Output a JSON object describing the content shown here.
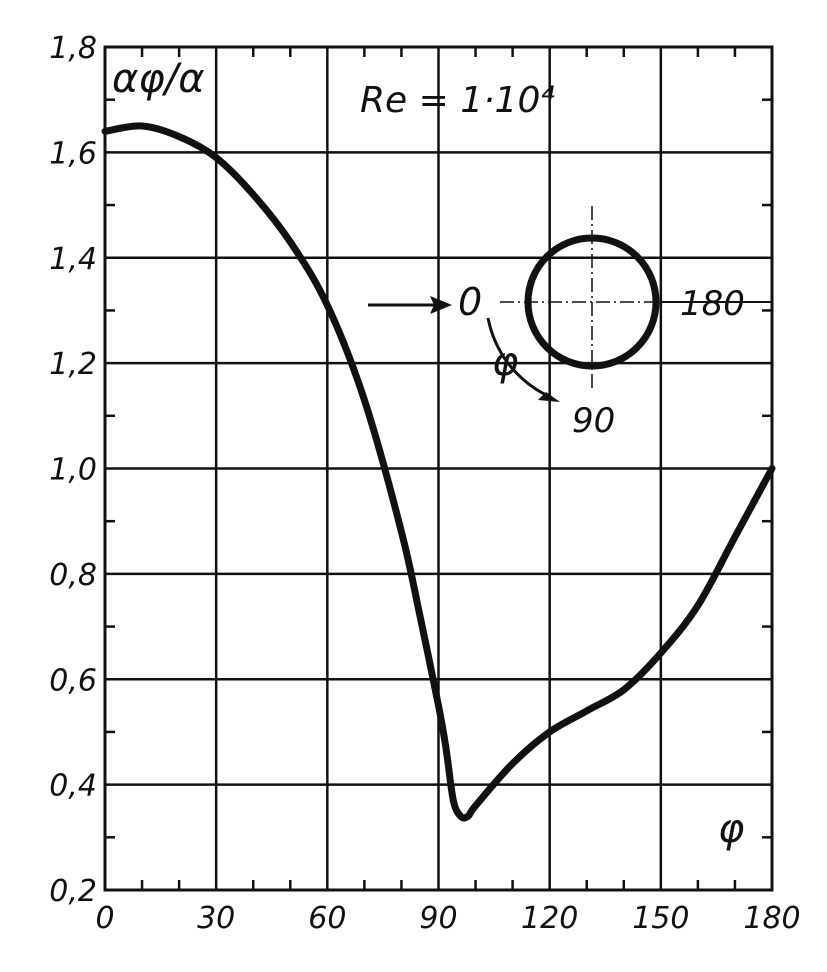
{
  "chart_data": {
    "type": "line",
    "ylabel": "αφ/α",
    "xlabel": "φ",
    "annotation": "Re = 1·10⁴",
    "xlim": [
      0,
      180
    ],
    "ylim": [
      0.2,
      1.8
    ],
    "grid": true,
    "xticks": [
      0,
      30,
      60,
      90,
      120,
      150,
      180
    ],
    "xtick_labels": [
      "0",
      "30",
      "60",
      "90",
      "120",
      "150",
      "180"
    ],
    "yticks": [
      0.2,
      0.4,
      0.6,
      0.8,
      1.0,
      1.2,
      1.4,
      1.6,
      1.8
    ],
    "ytick_labels": [
      "0,2",
      "0,4",
      "0,6",
      "0,8",
      "1,0",
      "1,2",
      "1,4",
      "1,6",
      "1,8"
    ],
    "series": [
      {
        "x": [
          0,
          10,
          20,
          30,
          40,
          50,
          60,
          70,
          80,
          85,
          90,
          92,
          94,
          96,
          98,
          100,
          110,
          120,
          130,
          140,
          150,
          160,
          170,
          180
        ],
        "y": [
          1.64,
          1.65,
          1.63,
          1.59,
          1.52,
          1.43,
          1.31,
          1.13,
          0.88,
          0.72,
          0.55,
          0.47,
          0.37,
          0.34,
          0.34,
          0.36,
          0.44,
          0.5,
          0.54,
          0.58,
          0.65,
          0.74,
          0.87,
          1.0
        ]
      }
    ]
  },
  "inset": {
    "label_0": "0",
    "label_180": "180",
    "label_90": "90",
    "label_phi": "φ"
  },
  "colors": {
    "line": "#111111",
    "grid": "#111111"
  }
}
